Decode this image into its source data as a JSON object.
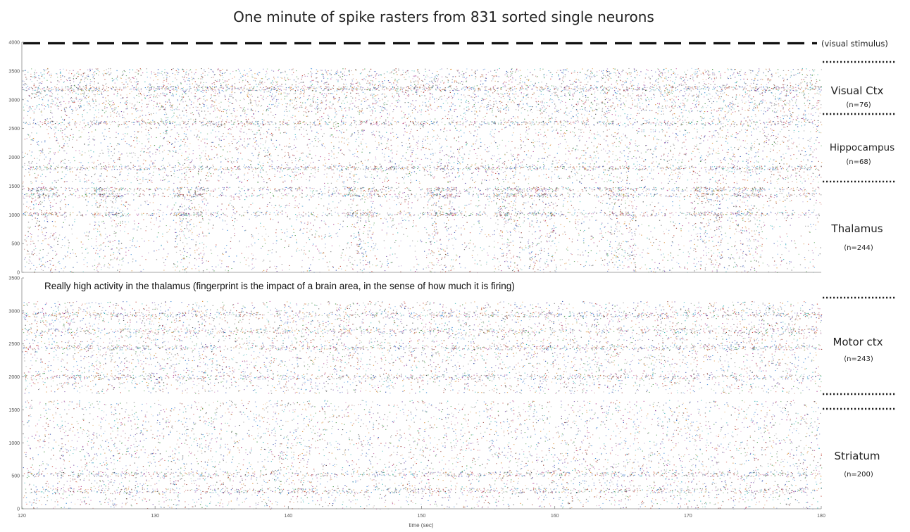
{
  "chart_data": {
    "type": "scatter",
    "subtype": "spike raster",
    "title": "One minute of spike rasters from 831 sorted single neurons",
    "xlabel": "time (sec)",
    "x_range": [
      120,
      180
    ],
    "x_ticks": [
      "120",
      "130",
      "140",
      "150",
      "160",
      "170",
      "180"
    ],
    "grid": false,
    "annotation": "Really high activity in the thalamus (fingerprint is the impact of a brain area, in the sense of how much it is firing)",
    "visual_stimulus_label": "(visual stimulus)",
    "panels": [
      {
        "name": "top",
        "ylim": [
          0,
          4000
        ],
        "y_ticks": [
          "0",
          "500",
          "1000",
          "1500",
          "2000",
          "2500",
          "3000",
          "3500",
          "4000"
        ],
        "regions": [
          {
            "name": "Visual Ctx",
            "n_label": "(n=76)",
            "n": 76,
            "y_range": [
              2800,
              3550
            ]
          },
          {
            "name": "Hippocampus",
            "n_label": "(n=68)",
            "n": 68,
            "y_range": [
              1550,
              2800
            ]
          },
          {
            "name": "Thalamus",
            "n_label": "(n=244)",
            "n": 244,
            "y_range": [
              0,
              1500
            ]
          }
        ],
        "stimulus_y": 4000,
        "dense_bands_y": [
          3200,
          2600,
          1820,
          1450,
          1350,
          1020
        ],
        "bursts_time": [
          121.5,
          126.5,
          132.5,
          145.5,
          151.5,
          156.5,
          159,
          165,
          171.5,
          174.5
        ]
      },
      {
        "name": "bottom",
        "ylim": [
          0,
          3500
        ],
        "y_ticks": [
          "0",
          "500",
          "1000",
          "1500",
          "2000",
          "2500",
          "3000",
          "3500"
        ],
        "regions": [
          {
            "name": "Motor ctx",
            "n_label": "(n=243)",
            "n": 243,
            "y_range": [
              1750,
              3150
            ]
          },
          {
            "name": "Striatum",
            "n_label": "(n=200)",
            "n": 200,
            "y_range": [
              0,
              1650
            ]
          }
        ],
        "dense_bands_y": [
          2950,
          2700,
          2450,
          2000,
          530,
          280
        ],
        "bursts_time": []
      }
    ],
    "spike_colors": [
      "#1f3fa8",
      "#2a7fd4",
      "#c0392b",
      "#8e2b1f",
      "#d4801c",
      "#6b3fa0",
      "#3c8f3c",
      "#2bb0b0",
      "#7a7a7a",
      "#b03a8c",
      "#444444"
    ]
  }
}
